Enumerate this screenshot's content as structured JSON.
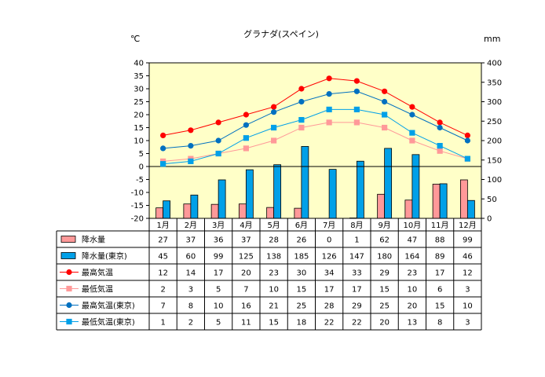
{
  "chart_data": {
    "type": "bar+line",
    "title": "グラナダ(スペイン)",
    "left_axis_unit": "℃",
    "right_axis_unit": "mm",
    "left_ylim": [
      -20,
      40
    ],
    "left_ticks": [
      40,
      35,
      30,
      25,
      20,
      15,
      10,
      5,
      0,
      -5,
      -10,
      -15,
      -20
    ],
    "right_ylim": [
      0,
      400
    ],
    "right_ticks": [
      400,
      350,
      300,
      250,
      200,
      150,
      100,
      50,
      0
    ],
    "grid": false,
    "plot_background": "#ffffc8",
    "categories": [
      "1月",
      "2月",
      "3月",
      "4月",
      "5月",
      "6月",
      "7月",
      "8月",
      "9月",
      "10月",
      "11月",
      "12月"
    ],
    "series": [
      {
        "name": "降水量",
        "kind": "bar",
        "axis": "right",
        "color": "#ff9999",
        "values": [
          27,
          37,
          36,
          37,
          28,
          26,
          0,
          1,
          62,
          47,
          88,
          99
        ]
      },
      {
        "name": "降水量(東京)",
        "kind": "bar",
        "axis": "right",
        "color": "#00a0e8",
        "values": [
          45,
          60,
          99,
          125,
          138,
          185,
          126,
          147,
          180,
          164,
          89,
          46
        ]
      },
      {
        "name": "最高気温",
        "kind": "line",
        "axis": "left",
        "color": "#ff0000",
        "marker": "circle",
        "values": [
          12,
          14,
          17,
          20,
          23,
          30,
          34,
          33,
          29,
          23,
          17,
          12
        ]
      },
      {
        "name": "最低気温",
        "kind": "line",
        "axis": "left",
        "color": "#ff9999",
        "marker": "square",
        "values": [
          2,
          3,
          5,
          7,
          10,
          15,
          17,
          17,
          15,
          10,
          6,
          3
        ]
      },
      {
        "name": "最高気温(東京)",
        "kind": "line",
        "axis": "left",
        "color": "#0070c0",
        "marker": "circle",
        "values": [
          7,
          8,
          10,
          16,
          21,
          25,
          28,
          29,
          25,
          20,
          15,
          10
        ]
      },
      {
        "name": "最低気温(東京)",
        "kind": "line",
        "axis": "left",
        "color": "#00a0e8",
        "marker": "square",
        "values": [
          1,
          2,
          5,
          11,
          15,
          18,
          22,
          22,
          20,
          13,
          8,
          3
        ]
      }
    ]
  }
}
